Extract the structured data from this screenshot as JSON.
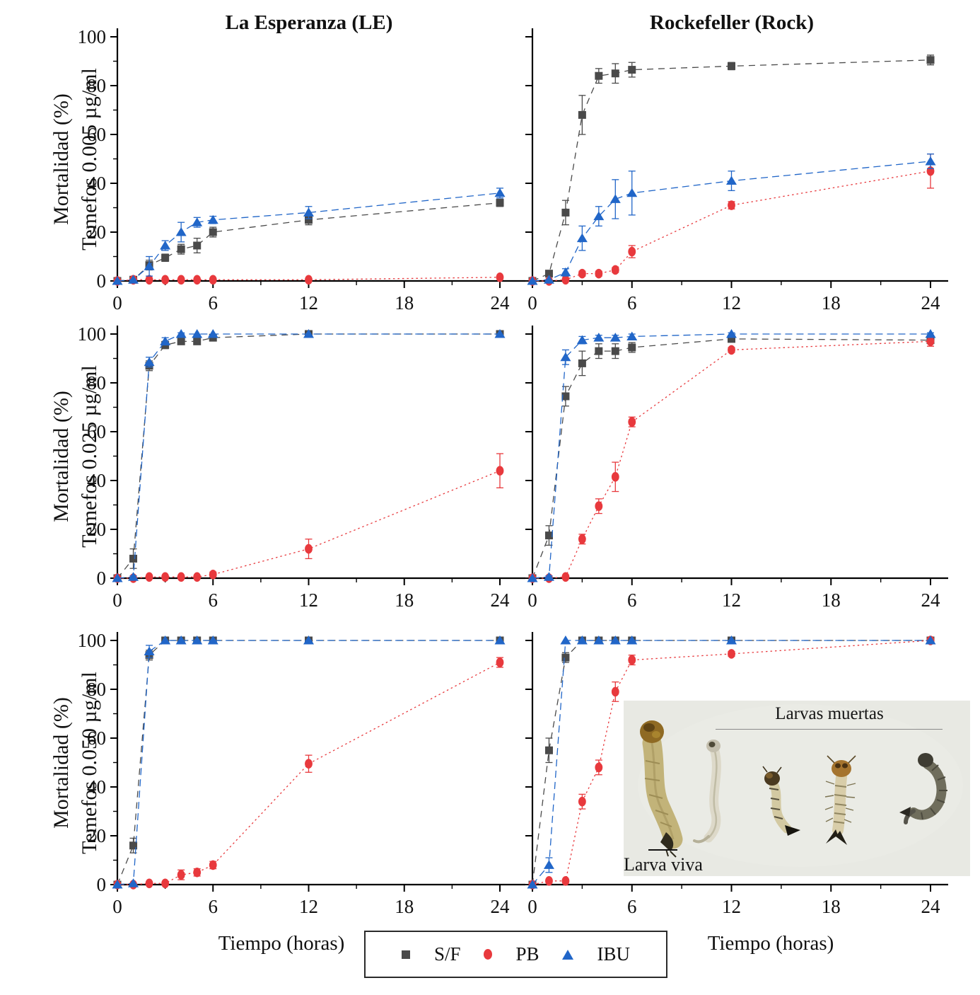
{
  "figure": {
    "background": "#ffffff",
    "x_axis_label": "Tiempo (horas)",
    "series_legend": [
      {
        "key": "S/F",
        "marker": "square",
        "color": "#4a4a4a"
      },
      {
        "key": "PB",
        "marker": "circle",
        "color": "#e8393d"
      },
      {
        "key": "IBU",
        "marker": "triangle",
        "color": "#2166c8"
      }
    ]
  },
  "inset": {
    "label_dead": "Larvas muertas",
    "label_alive": "Larva viva"
  },
  "chart_data": [
    {
      "id": "le-0005",
      "type": "line",
      "title": "La Esperanza (LE)",
      "ylabel_line1": "Mortalidad (%)",
      "ylabel_line2": "Temefos 0.005 µg/ml",
      "x": [
        0,
        1,
        2,
        3,
        4,
        5,
        6,
        12,
        24
      ],
      "xticks": [
        0,
        6,
        12,
        18,
        24
      ],
      "xminor": [
        3,
        9,
        15,
        21
      ],
      "yticks": [
        0,
        20,
        40,
        60,
        80,
        100
      ],
      "yminor": [
        10,
        30,
        50,
        70,
        90
      ],
      "xlim": [
        0,
        25.5
      ],
      "ylim": [
        0,
        100
      ],
      "show_ytick_labels": true,
      "series": [
        {
          "name": "S/F",
          "values": [
            0,
            0.5,
            6.5,
            9.5,
            13,
            14.5,
            20,
            25,
            32
          ],
          "errors": [
            0,
            0,
            2,
            1.5,
            2,
            3,
            2,
            2,
            1.5
          ]
        },
        {
          "name": "PB",
          "values": [
            0,
            0.5,
            0.5,
            0.5,
            0.5,
            0.5,
            0.5,
            0.5,
            1.5
          ],
          "errors": [
            0,
            0,
            0,
            0,
            0,
            0,
            0,
            0,
            0
          ]
        },
        {
          "name": "IBU",
          "values": [
            0,
            0.5,
            6,
            14.5,
            20,
            24,
            25,
            28,
            36
          ],
          "errors": [
            0,
            0,
            4,
            2,
            4,
            2,
            1.5,
            2.5,
            2
          ]
        }
      ]
    },
    {
      "id": "rock-0005",
      "type": "line",
      "title": "Rockefeller (Rock)",
      "ylabel_line1": "Mortalidad (%)",
      "ylabel_line2": "Temefos 0.005 µg/ml",
      "x": [
        0,
        1,
        2,
        3,
        4,
        5,
        6,
        12,
        24
      ],
      "xticks": [
        0,
        6,
        12,
        18,
        24
      ],
      "xminor": [
        3,
        9,
        15,
        21
      ],
      "yticks": [
        0,
        20,
        40,
        60,
        80,
        100
      ],
      "yminor": [],
      "xlim": [
        0,
        25.5
      ],
      "ylim": [
        0,
        100
      ],
      "show_ytick_labels": false,
      "series": [
        {
          "name": "S/F",
          "values": [
            0,
            3,
            28,
            68,
            84,
            85,
            86.5,
            88,
            90.5
          ],
          "errors": [
            0,
            1,
            5,
            8,
            3,
            4,
            3,
            1.5,
            2
          ]
        },
        {
          "name": "PB",
          "values": [
            0,
            0,
            0.5,
            3,
            3,
            4.5,
            12,
            31,
            45
          ],
          "errors": [
            0,
            0,
            0,
            1,
            1,
            1,
            2.5,
            1.5,
            7
          ]
        },
        {
          "name": "IBU",
          "values": [
            0,
            0.5,
            3.5,
            17.5,
            26.5,
            33.5,
            36,
            41,
            49
          ],
          "errors": [
            0,
            0,
            1.5,
            5,
            4,
            8,
            9,
            4,
            3
          ]
        }
      ]
    },
    {
      "id": "le-0025",
      "type": "line",
      "ylabel_line1": "Mortalidad (%)",
      "ylabel_line2": "Temefos 0.025 µg/ml",
      "x": [
        0,
        1,
        2,
        3,
        4,
        5,
        6,
        12,
        24
      ],
      "xticks": [
        0,
        6,
        12,
        18,
        24
      ],
      "xminor": [
        3,
        9,
        15,
        21
      ],
      "yticks": [
        0,
        20,
        40,
        60,
        80,
        100
      ],
      "yminor": [
        10,
        30,
        50,
        70,
        90
      ],
      "xlim": [
        0,
        25.5
      ],
      "ylim": [
        0,
        100
      ],
      "show_ytick_labels": true,
      "series": [
        {
          "name": "S/F",
          "values": [
            0,
            8,
            87,
            95.5,
            97,
            97,
            98.5,
            100,
            100
          ],
          "errors": [
            0,
            4,
            2,
            1.5,
            1,
            1,
            1,
            0,
            0
          ]
        },
        {
          "name": "PB",
          "values": [
            0,
            0,
            0.5,
            0.5,
            0.5,
            0.5,
            1.5,
            12,
            44
          ],
          "errors": [
            0,
            0,
            0,
            0,
            0,
            0,
            1,
            4,
            7
          ]
        },
        {
          "name": "IBU",
          "values": [
            0,
            0.5,
            88.5,
            97,
            100,
            100,
            100,
            100,
            100
          ],
          "errors": [
            0,
            0.5,
            2,
            1.5,
            0.5,
            0,
            0,
            0,
            0
          ]
        }
      ]
    },
    {
      "id": "rock-0025",
      "type": "line",
      "ylabel_line1": "Mortalidad (%)",
      "ylabel_line2": "Temefos 0.025 µg/ml",
      "x": [
        0,
        1,
        2,
        3,
        4,
        5,
        6,
        12,
        24
      ],
      "xticks": [
        0,
        6,
        12,
        18,
        24
      ],
      "xminor": [
        3,
        9,
        15,
        21
      ],
      "yticks": [
        0,
        20,
        40,
        60,
        80,
        100
      ],
      "yminor": [],
      "xlim": [
        0,
        25.5
      ],
      "ylim": [
        0,
        100
      ],
      "show_ytick_labels": false,
      "series": [
        {
          "name": "S/F",
          "values": [
            0,
            17.5,
            74.5,
            88,
            93,
            93,
            94.5,
            98,
            97.5
          ],
          "errors": [
            0,
            4,
            4,
            5,
            3,
            3,
            2,
            1,
            1
          ]
        },
        {
          "name": "PB",
          "values": [
            0,
            0,
            0.5,
            16,
            29.5,
            41.5,
            64,
            93.5,
            97
          ],
          "errors": [
            0,
            0,
            0,
            2,
            3,
            6,
            2,
            1,
            2
          ]
        },
        {
          "name": "IBU",
          "values": [
            0,
            0.5,
            90.5,
            97.5,
            98.5,
            98.5,
            99,
            100,
            100
          ],
          "errors": [
            0,
            0.5,
            3,
            1.5,
            1,
            1,
            1,
            0.5,
            0.5
          ]
        }
      ]
    },
    {
      "id": "le-0050",
      "type": "line",
      "ylabel_line1": "Mortalidad (%)",
      "ylabel_line2": "Temefos 0.050 µg/ml",
      "x": [
        0,
        1,
        2,
        3,
        4,
        5,
        6,
        12,
        24
      ],
      "xticks": [
        0,
        6,
        12,
        18,
        24
      ],
      "xminor": [
        3,
        9,
        15,
        21
      ],
      "yticks": [
        0,
        20,
        40,
        60,
        80,
        100
      ],
      "yminor": [
        10,
        30,
        50,
        70,
        90
      ],
      "xlim": [
        0,
        25.5
      ],
      "ylim": [
        0,
        100
      ],
      "show_ytick_labels": true,
      "series": [
        {
          "name": "S/F",
          "values": [
            0,
            16,
            94,
            100,
            100,
            100,
            100,
            100,
            100
          ],
          "errors": [
            0,
            3,
            2,
            0,
            0,
            0,
            0,
            0,
            0
          ]
        },
        {
          "name": "PB",
          "values": [
            0,
            0,
            0.5,
            0.5,
            4,
            5,
            8,
            49.5,
            91
          ],
          "errors": [
            0,
            0,
            0,
            0.5,
            2,
            1.5,
            1.5,
            3.5,
            2
          ]
        },
        {
          "name": "IBU",
          "values": [
            0,
            0.5,
            95.5,
            100,
            100,
            100,
            100,
            100,
            100
          ],
          "errors": [
            0,
            0,
            2.5,
            0,
            0,
            0,
            0,
            0,
            0
          ]
        }
      ]
    },
    {
      "id": "rock-0050",
      "type": "line",
      "ylabel_line1": "Mortalidad (%)",
      "ylabel_line2": "Temefos 0.050 µg/ml",
      "x": [
        0,
        1,
        2,
        3,
        4,
        5,
        6,
        12,
        24
      ],
      "xticks": [
        0,
        6,
        12,
        18,
        24
      ],
      "xminor": [
        3,
        9,
        15,
        21
      ],
      "yticks": [
        0,
        20,
        40,
        60,
        80,
        100
      ],
      "yminor": [],
      "xlim": [
        0,
        25.5
      ],
      "ylim": [
        0,
        100
      ],
      "show_ytick_labels": false,
      "series": [
        {
          "name": "S/F",
          "values": [
            0,
            55,
            93,
            100,
            100,
            100,
            100,
            100,
            100
          ],
          "errors": [
            0,
            5,
            2,
            0,
            0,
            0,
            0,
            0,
            0
          ]
        },
        {
          "name": "PB",
          "values": [
            0,
            1.5,
            1.5,
            34,
            48,
            79,
            92,
            94.5,
            100
          ],
          "errors": [
            0,
            0.5,
            0.5,
            3,
            3,
            4,
            2,
            1,
            0.5
          ]
        },
        {
          "name": "IBU",
          "values": [
            0,
            8,
            100,
            100,
            100,
            100,
            100,
            100,
            100
          ],
          "errors": [
            0,
            3,
            0,
            0,
            0,
            0,
            0,
            0,
            0
          ]
        }
      ]
    }
  ]
}
